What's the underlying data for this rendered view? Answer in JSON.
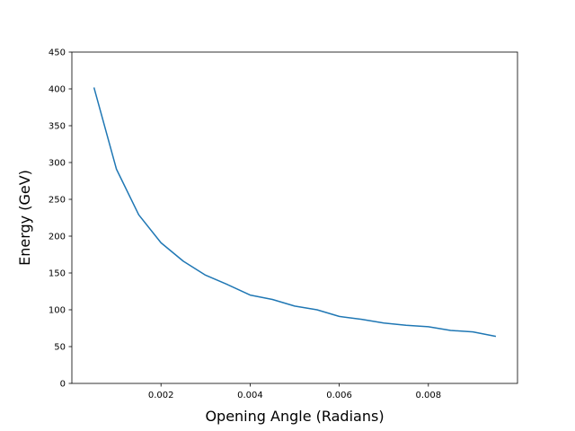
{
  "chart_data": {
    "type": "line",
    "title": "",
    "xlabel": "Opening Angle (Radians)",
    "ylabel": "Energy (GeV)",
    "xlim": [
      0.0,
      0.01
    ],
    "ylim": [
      0,
      450
    ],
    "grid": false,
    "x_ticks": [
      0.002,
      0.004,
      0.006,
      0.008
    ],
    "x_tick_labels": [
      "0.002",
      "0.004",
      "0.006",
      "0.008"
    ],
    "y_ticks": [
      0,
      50,
      100,
      150,
      200,
      250,
      300,
      350,
      400,
      450
    ],
    "y_tick_labels": [
      "0",
      "50",
      "100",
      "150",
      "200",
      "250",
      "300",
      "350",
      "400",
      "450"
    ],
    "series": [
      {
        "color": "#1f77b4",
        "x": [
          0.0005,
          0.001,
          0.0015,
          0.002,
          0.0025,
          0.003,
          0.0035,
          0.004,
          0.0045,
          0.005,
          0.0055,
          0.006,
          0.0065,
          0.007,
          0.0075,
          0.008,
          0.0085,
          0.009,
          0.0095
        ],
        "y": [
          401,
          291,
          229,
          191,
          166,
          147,
          134,
          120,
          114,
          105,
          100,
          91,
          87,
          82,
          79,
          77,
          72,
          70,
          64
        ]
      }
    ]
  }
}
